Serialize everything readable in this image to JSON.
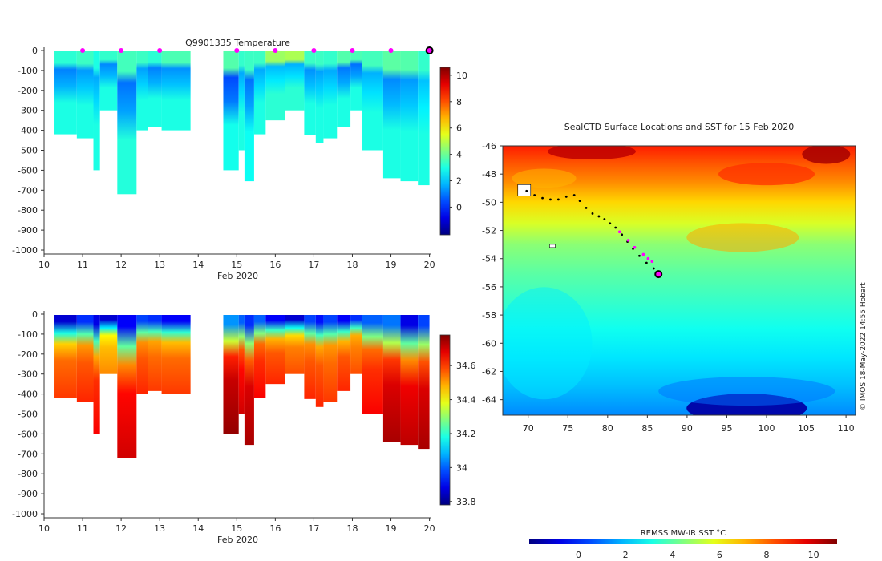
{
  "chart_data": [
    {
      "type": "heatmap",
      "title": "Q9901335  Temperature",
      "xlabel": "Feb 2020",
      "x_ticks": [
        "10",
        "11",
        "12",
        "13",
        "14",
        "15",
        "16",
        "17",
        "18",
        "19",
        "20"
      ],
      "y_ticks": [
        "0",
        "-100",
        "-200",
        "-300",
        "-400",
        "-500",
        "-600",
        "-700",
        "-800",
        "-900",
        "-1000"
      ],
      "xlim": [
        10,
        20.05
      ],
      "ylim": [
        -1020,
        0
      ],
      "colorbar": {
        "min": -2.1,
        "max": 10.6,
        "ticks": [
          "0",
          "2",
          "4",
          "6",
          "8",
          "10"
        ]
      },
      "cast_markers_x": [
        11,
        12,
        13,
        15,
        16,
        17,
        18,
        19
      ],
      "current_position_x": 20,
      "profiles": [
        {
          "x0": 10.25,
          "x1": 10.85,
          "bottom": -420,
          "surface_value": 3.2,
          "min_value": 1.1,
          "deep_value": 3.0
        },
        {
          "x0": 10.85,
          "x1": 11.28,
          "bottom": -440,
          "surface_value": 3.4,
          "min_value": 1.4,
          "deep_value": 3.0
        },
        {
          "x0": 11.28,
          "x1": 11.45,
          "bottom": -600,
          "surface_value": 3.0,
          "min_value": 1.6,
          "deep_value": 3.0
        },
        {
          "x0": 11.45,
          "x1": 11.9,
          "bottom": -300,
          "surface_value": 3.3,
          "min_value": 1.2,
          "deep_value": 3.0
        },
        {
          "x0": 11.9,
          "x1": 12.4,
          "bottom": -720,
          "surface_value": 3.5,
          "min_value": 0.9,
          "deep_value": 3.1
        },
        {
          "x0": 12.4,
          "x1": 12.7,
          "bottom": -400,
          "surface_value": 3.4,
          "min_value": 1.5,
          "deep_value": 3.0
        },
        {
          "x0": 12.7,
          "x1": 13.05,
          "bottom": -385,
          "surface_value": 3.2,
          "min_value": 1.1,
          "deep_value": 3.0
        },
        {
          "x0": 13.05,
          "x1": 13.8,
          "bottom": -400,
          "surface_value": 3.6,
          "min_value": 1.3,
          "deep_value": 3.0
        },
        {
          "x0": 14.65,
          "x1": 15.05,
          "bottom": -600,
          "surface_value": 3.7,
          "min_value": 0.4,
          "deep_value": 2.9
        },
        {
          "x0": 15.05,
          "x1": 15.2,
          "bottom": -500,
          "surface_value": 3.3,
          "min_value": 1.6,
          "deep_value": 3.0
        },
        {
          "x0": 15.2,
          "x1": 15.45,
          "bottom": -655,
          "surface_value": 3.4,
          "min_value": 0.9,
          "deep_value": 2.8
        },
        {
          "x0": 15.45,
          "x1": 15.75,
          "bottom": -420,
          "surface_value": 3.4,
          "min_value": 1.6,
          "deep_value": 3.0
        },
        {
          "x0": 15.75,
          "x1": 16.25,
          "bottom": -350,
          "surface_value": 4.6,
          "min_value": 1.8,
          "deep_value": 3.2
        },
        {
          "x0": 16.25,
          "x1": 16.75,
          "bottom": -300,
          "surface_value": 4.8,
          "min_value": 1.7,
          "deep_value": 3.2
        },
        {
          "x0": 16.75,
          "x1": 17.05,
          "bottom": -425,
          "surface_value": 3.4,
          "min_value": 1.3,
          "deep_value": 3.0
        },
        {
          "x0": 17.05,
          "x1": 17.25,
          "bottom": -465,
          "surface_value": 3.4,
          "min_value": 1.5,
          "deep_value": 3.0
        },
        {
          "x0": 17.25,
          "x1": 17.6,
          "bottom": -440,
          "surface_value": 3.3,
          "min_value": 1.6,
          "deep_value": 3.0
        },
        {
          "x0": 17.6,
          "x1": 17.95,
          "bottom": -385,
          "surface_value": 3.7,
          "min_value": 1.0,
          "deep_value": 3.0
        },
        {
          "x0": 17.95,
          "x1": 18.25,
          "bottom": -300,
          "surface_value": 3.6,
          "min_value": 0.9,
          "deep_value": 3.0
        },
        {
          "x0": 18.25,
          "x1": 18.8,
          "bottom": -500,
          "surface_value": 3.5,
          "min_value": 1.7,
          "deep_value": 3.0
        },
        {
          "x0": 18.8,
          "x1": 19.25,
          "bottom": -640,
          "surface_value": 3.8,
          "min_value": 1.2,
          "deep_value": 3.0
        },
        {
          "x0": 19.25,
          "x1": 19.7,
          "bottom": -655,
          "surface_value": 3.7,
          "min_value": 1.4,
          "deep_value": 3.0
        },
        {
          "x0": 19.7,
          "x1": 20.0,
          "bottom": -675,
          "surface_value": 3.3,
          "min_value": 1.9,
          "deep_value": 3.0
        }
      ]
    },
    {
      "type": "heatmap",
      "title": "",
      "xlabel": "Feb 2020",
      "x_ticks": [
        "10",
        "11",
        "12",
        "13",
        "14",
        "15",
        "16",
        "17",
        "18",
        "19",
        "20"
      ],
      "y_ticks": [
        "0",
        "-100",
        "-200",
        "-300",
        "-400",
        "-500",
        "-600",
        "-700",
        "-800",
        "-900",
        "-1000"
      ],
      "xlim": [
        10,
        20.05
      ],
      "ylim": [
        -1020,
        0
      ],
      "colorbar": {
        "min": 33.78,
        "max": 34.78,
        "ticks": [
          "33.8",
          "34",
          "34.2",
          "34.4",
          "34.6"
        ]
      },
      "profiles": [
        {
          "x0": 10.25,
          "x1": 10.85,
          "bottom": -420,
          "surface_value": 33.86,
          "deep_value": 34.6
        },
        {
          "x0": 10.85,
          "x1": 11.28,
          "bottom": -440,
          "surface_value": 33.95,
          "deep_value": 34.62
        },
        {
          "x0": 11.28,
          "x1": 11.45,
          "bottom": -600,
          "surface_value": 33.88,
          "deep_value": 34.66
        },
        {
          "x0": 11.45,
          "x1": 11.9,
          "bottom": -300,
          "surface_value": 33.86,
          "deep_value": 34.52
        },
        {
          "x0": 11.9,
          "x1": 12.4,
          "bottom": -720,
          "surface_value": 33.9,
          "deep_value": 34.7
        },
        {
          "x0": 12.4,
          "x1": 12.7,
          "bottom": -400,
          "surface_value": 33.97,
          "deep_value": 34.62
        },
        {
          "x0": 12.7,
          "x1": 13.05,
          "bottom": -385,
          "surface_value": 33.95,
          "deep_value": 34.6
        },
        {
          "x0": 13.05,
          "x1": 13.8,
          "bottom": -400,
          "surface_value": 33.9,
          "deep_value": 34.6
        },
        {
          "x0": 14.65,
          "x1": 15.05,
          "bottom": -600,
          "surface_value": 34.05,
          "deep_value": 34.76
        },
        {
          "x0": 15.05,
          "x1": 15.2,
          "bottom": -500,
          "surface_value": 34.0,
          "deep_value": 34.7
        },
        {
          "x0": 15.2,
          "x1": 15.45,
          "bottom": -655,
          "surface_value": 33.95,
          "deep_value": 34.74
        },
        {
          "x0": 15.45,
          "x1": 15.75,
          "bottom": -420,
          "surface_value": 34.0,
          "deep_value": 34.66
        },
        {
          "x0": 15.75,
          "x1": 16.25,
          "bottom": -350,
          "surface_value": 33.9,
          "deep_value": 34.62
        },
        {
          "x0": 16.25,
          "x1": 16.75,
          "bottom": -300,
          "surface_value": 33.86,
          "deep_value": 34.58
        },
        {
          "x0": 16.75,
          "x1": 17.05,
          "bottom": -425,
          "surface_value": 33.97,
          "deep_value": 34.62
        },
        {
          "x0": 17.05,
          "x1": 17.25,
          "bottom": -465,
          "surface_value": 33.92,
          "deep_value": 34.62
        },
        {
          "x0": 17.25,
          "x1": 17.6,
          "bottom": -440,
          "surface_value": 33.97,
          "deep_value": 34.6
        },
        {
          "x0": 17.6,
          "x1": 17.95,
          "bottom": -385,
          "surface_value": 33.9,
          "deep_value": 34.62
        },
        {
          "x0": 17.95,
          "x1": 18.25,
          "bottom": -300,
          "surface_value": 33.95,
          "deep_value": 34.58
        },
        {
          "x0": 18.25,
          "x1": 18.8,
          "bottom": -500,
          "surface_value": 34.0,
          "deep_value": 34.66
        },
        {
          "x0": 18.8,
          "x1": 19.25,
          "bottom": -640,
          "surface_value": 34.02,
          "deep_value": 34.74
        },
        {
          "x0": 19.25,
          "x1": 19.7,
          "bottom": -655,
          "surface_value": 33.88,
          "deep_value": 34.72
        },
        {
          "x0": 19.7,
          "x1": 20.0,
          "bottom": -675,
          "surface_value": 33.97,
          "deep_value": 34.74
        }
      ]
    },
    {
      "type": "heatmap",
      "title": "SealCTD Surface Locations and SST for 15 Feb 2020",
      "xlabel": "",
      "ylabel": "",
      "x_ticks": [
        "70",
        "75",
        "80",
        "85",
        "90",
        "95",
        "100",
        "105",
        "110"
      ],
      "y_ticks": [
        "-46",
        "-48",
        "-50",
        "-52",
        "-54",
        "-56",
        "-58",
        "-60",
        "-62",
        "-64"
      ],
      "xlim": [
        66.8,
        111.2
      ],
      "ylim": [
        -65.1,
        -46
      ],
      "colorbar": {
        "label": "REMSS MW-IR SST °C",
        "min": -2.1,
        "max": 11.0,
        "ticks": [
          "0",
          "2",
          "4",
          "6",
          "8",
          "10"
        ]
      },
      "current_position": {
        "lon": 86.4,
        "lat": -55.1
      },
      "track_black": [
        [
          69.8,
          -49.2
        ],
        [
          70.8,
          -49.5
        ],
        [
          71.8,
          -49.7
        ],
        [
          72.8,
          -49.8
        ],
        [
          73.8,
          -49.8
        ],
        [
          74.8,
          -49.6
        ],
        [
          75.8,
          -49.5
        ],
        [
          76.5,
          -49.9
        ],
        [
          77.3,
          -50.4
        ],
        [
          78.1,
          -50.8
        ],
        [
          78.9,
          -51.0
        ],
        [
          79.6,
          -51.2
        ],
        [
          80.3,
          -51.5
        ],
        [
          81.0,
          -51.8
        ],
        [
          81.8,
          -52.3
        ],
        [
          82.5,
          -52.8
        ],
        [
          83.2,
          -53.3
        ],
        [
          84.0,
          -53.8
        ],
        [
          84.9,
          -54.3
        ],
        [
          85.8,
          -54.7
        ]
      ],
      "track_magenta": [
        [
          81.5,
          -52.1
        ],
        [
          82.6,
          -52.7
        ],
        [
          83.4,
          -53.2
        ],
        [
          84.5,
          -53.7
        ],
        [
          85.1,
          -54.0
        ],
        [
          85.6,
          -54.2
        ]
      ],
      "credit": "© IMOS 18-May-2022 14:55 Hobart"
    }
  ]
}
